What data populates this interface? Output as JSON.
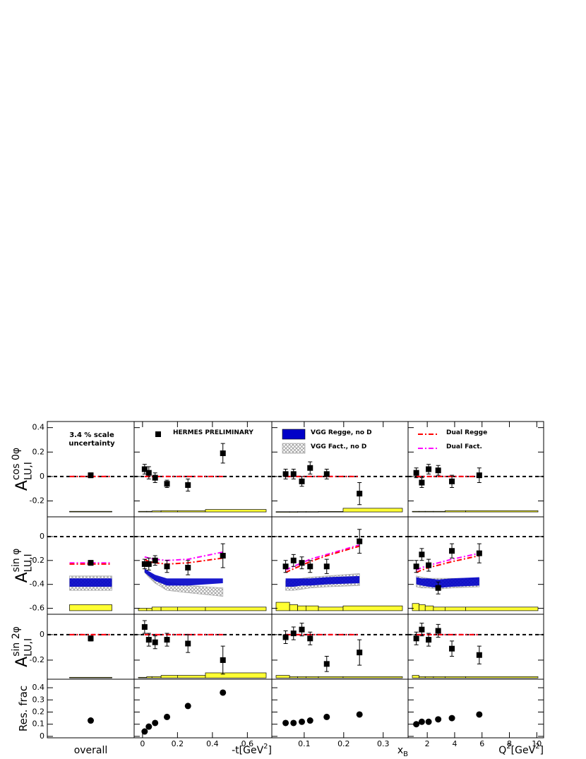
{
  "chart_data": {
    "type": "scatter",
    "annotation": [
      "3.4 % scale",
      "uncertainty"
    ],
    "legend": {
      "data": "HERMES PRELIMINARY",
      "vgg_regge": "VGG Regge, no D",
      "vgg_fact": "VGG Fact., no D",
      "dual_regge": "Dual Regge",
      "dual_fact": "Dual Fact."
    },
    "colors": {
      "data": "#000000",
      "vgg_regge": "#0000c8",
      "vgg_fact": "#a8a8a8",
      "dual_regge": "#ff0000",
      "dual_fact": "#ff00ff",
      "syst": "#ffff33"
    },
    "columns": [
      {
        "xlabel": [
          {
            "text": "overall"
          }
        ]
      },
      {
        "xlabel": [
          {
            "text": "-t[GeV"
          },
          {
            "text": "2",
            "pos": "sup"
          },
          {
            "text": "]"
          }
        ],
        "xlim": [
          -0.048,
          0.74
        ],
        "xticks": [
          0,
          0.2,
          0.4,
          0.6
        ],
        "x": [
          0.012,
          0.036,
          0.072,
          0.14,
          0.26,
          0.46
        ]
      },
      {
        "xlabel": [
          {
            "text": "x"
          },
          {
            "text": "B",
            "pos": "sub"
          }
        ],
        "xlim": [
          0.018,
          0.363
        ],
        "xticks": [
          0.1,
          0.2,
          0.3
        ],
        "x": [
          0.053,
          0.073,
          0.094,
          0.115,
          0.157,
          0.24
        ]
      },
      {
        "xlabel": [
          {
            "text": "Q"
          },
          {
            "text": "2",
            "pos": "sup"
          },
          {
            "text": "[GeV"
          },
          {
            "text": "2",
            "pos": "sup"
          },
          {
            "text": "]"
          }
        ],
        "xlim": [
          0.6,
          10.5
        ],
        "xticks": [
          2,
          4,
          6,
          8,
          10
        ],
        "x": [
          1.2,
          1.6,
          2.1,
          2.8,
          3.8,
          5.8
        ]
      }
    ],
    "rows": [
      {
        "ylabel": [
          {
            "text": "A"
          },
          {
            "text": "cos 0φ",
            "pos": "sup"
          },
          {
            "text": "LU,I",
            "pos": "sub"
          }
        ],
        "ylim": [
          -0.33,
          0.45
        ],
        "yticks": [
          -0.2,
          0,
          0.2,
          0.4
        ],
        "reference_line": 0,
        "syst_base": -0.29,
        "panels": [
          {
            "values": [
              0.01
            ],
            "errors": [
              0.02
            ],
            "dual_regge": [
              0
            ],
            "dual_fact": [
              0
            ],
            "syst": [
              0.005
            ]
          },
          {
            "values": [
              0.06,
              0.03,
              -0.01,
              -0.06,
              -0.07,
              0.19
            ],
            "errors": [
              0.04,
              0.05,
              0.04,
              0.03,
              0.05,
              0.08
            ],
            "dual_regge": [
              0,
              0,
              0,
              0,
              0,
              0
            ],
            "dual_fact": [
              0,
              0,
              0,
              0,
              0,
              0
            ],
            "syst": [
              0.005,
              0.005,
              0.008,
              0.01,
              0.01,
              0.02
            ]
          },
          {
            "values": [
              0.02,
              0.02,
              -0.04,
              0.07,
              0.02,
              -0.14
            ],
            "errors": [
              0.04,
              0.04,
              0.04,
              0.05,
              0.04,
              0.09
            ],
            "dual_regge": [
              0,
              0,
              0,
              0,
              0,
              0
            ],
            "dual_fact": [
              0,
              0,
              0,
              0,
              0,
              0
            ],
            "syst": [
              0.002,
              0.002,
              0.003,
              0.003,
              0.004,
              0.03
            ]
          },
          {
            "values": [
              0.03,
              -0.05,
              0.06,
              0.05,
              -0.04,
              0.01
            ],
            "errors": [
              0.04,
              0.04,
              0.04,
              0.04,
              0.05,
              0.06
            ],
            "dual_regge": [
              0,
              0,
              0,
              0,
              0,
              0
            ],
            "dual_fact": [
              0,
              0,
              0,
              0,
              0,
              0
            ],
            "syst": [
              0.005,
              0.005,
              0.005,
              0.005,
              0.01,
              0.01
            ]
          }
        ]
      },
      {
        "ylabel": [
          {
            "text": "A"
          },
          {
            "text": "sin φ",
            "pos": "sup"
          },
          {
            "text": "LU,I",
            "pos": "sub"
          }
        ],
        "ylim": [
          -0.65,
          0.165
        ],
        "yticks": [
          -0.6,
          -0.4,
          -0.2,
          0
        ],
        "reference_line": 0,
        "syst_base": -0.62,
        "panels": [
          {
            "values": [
              -0.22
            ],
            "errors": [
              0.02
            ],
            "dual_regge": [
              -0.23
            ],
            "dual_fact": [
              -0.22
            ],
            "vgg_regge": {
              "low": [
                -0.42
              ],
              "high": [
                -0.35
              ]
            },
            "vgg_fact": {
              "low": [
                -0.45
              ],
              "high": [
                -0.33
              ]
            },
            "syst": [
              0.05
            ]
          },
          {
            "values": [
              -0.23,
              -0.23,
              -0.2,
              -0.25,
              -0.26,
              -0.16
            ],
            "errors": [
              0.04,
              0.05,
              0.04,
              0.05,
              0.06,
              0.1
            ],
            "dual_regge": [
              -0.19,
              -0.21,
              -0.22,
              -0.23,
              -0.22,
              -0.18
            ],
            "dual_fact": [
              -0.17,
              -0.18,
              -0.19,
              -0.2,
              -0.19,
              -0.13
            ],
            "vgg_regge": {
              "low": [
                -0.3,
                -0.33,
                -0.37,
                -0.41,
                -0.41,
                -0.39
              ],
              "high": [
                -0.27,
                -0.29,
                -0.32,
                -0.35,
                -0.35,
                -0.35
              ]
            },
            "vgg_fact": {
              "low": [
                -0.3,
                -0.34,
                -0.39,
                -0.45,
                -0.47,
                -0.5
              ],
              "high": [
                -0.27,
                -0.3,
                -0.34,
                -0.38,
                -0.41,
                -0.43
              ]
            },
            "syst": [
              0.02,
              0.02,
              0.03,
              0.03,
              0.03,
              0.03
            ]
          },
          {
            "values": [
              -0.25,
              -0.2,
              -0.22,
              -0.25,
              -0.25,
              -0.04
            ],
            "errors": [
              0.05,
              0.05,
              0.05,
              0.05,
              0.06,
              0.1
            ],
            "dual_regge": [
              -0.3,
              -0.27,
              -0.24,
              -0.21,
              -0.16,
              -0.08
            ],
            "dual_fact": [
              -0.28,
              -0.25,
              -0.22,
              -0.19,
              -0.15,
              -0.07
            ],
            "vgg_regge": {
              "low": [
                -0.42,
                -0.42,
                -0.41,
                -0.41,
                -0.4,
                -0.39
              ],
              "high": [
                -0.35,
                -0.35,
                -0.35,
                -0.35,
                -0.34,
                -0.33
              ]
            },
            "vgg_fact": {
              "low": [
                -0.45,
                -0.45,
                -0.44,
                -0.43,
                -0.42,
                -0.41
              ],
              "high": [
                -0.37,
                -0.36,
                -0.35,
                -0.34,
                -0.33,
                -0.31
              ]
            },
            "syst": [
              0.07,
              0.05,
              0.04,
              0.04,
              0.03,
              0.04
            ]
          },
          {
            "values": [
              -0.25,
              -0.15,
              -0.24,
              -0.43,
              -0.12,
              -0.14
            ],
            "errors": [
              0.05,
              0.05,
              0.05,
              0.05,
              0.06,
              0.08
            ],
            "dual_regge": [
              -0.3,
              -0.28,
              -0.26,
              -0.24,
              -0.21,
              -0.16
            ],
            "dual_fact": [
              -0.28,
              -0.26,
              -0.24,
              -0.22,
              -0.19,
              -0.14
            ],
            "vgg_regge": {
              "low": [
                -0.4,
                -0.41,
                -0.42,
                -0.43,
                -0.42,
                -0.41
              ],
              "high": [
                -0.34,
                -0.35,
                -0.35,
                -0.36,
                -0.35,
                -0.34
              ]
            },
            "vgg_fact": {
              "low": [
                -0.42,
                -0.43,
                -0.43,
                -0.44,
                -0.43,
                -0.42
              ],
              "high": [
                -0.33,
                -0.34,
                -0.35,
                -0.35,
                -0.35,
                -0.35
              ]
            },
            "syst": [
              0.06,
              0.05,
              0.04,
              0.03,
              0.03,
              0.03
            ]
          }
        ]
      },
      {
        "ylabel": [
          {
            "text": "A"
          },
          {
            "text": "sin 2φ",
            "pos": "sup"
          },
          {
            "text": "LU,I",
            "pos": "sub"
          }
        ],
        "ylim": [
          -0.35,
          0.16
        ],
        "yticks": [
          -0.2,
          0
        ],
        "reference_line": 0,
        "syst_base": -0.34,
        "panels": [
          {
            "values": [
              -0.03
            ],
            "errors": [
              0.02
            ],
            "dual_regge": [
              0
            ],
            "dual_fact": [
              0
            ],
            "syst": [
              0.005
            ]
          },
          {
            "values": [
              0.06,
              -0.04,
              -0.06,
              -0.04,
              -0.07,
              -0.2
            ],
            "errors": [
              0.05,
              0.05,
              0.05,
              0.05,
              0.07,
              0.11
            ],
            "dual_regge": [
              0,
              0,
              0,
              0,
              0,
              0
            ],
            "dual_fact": [
              0,
              0,
              0,
              0,
              0,
              0
            ],
            "syst": [
              0.005,
              0.01,
              0.01,
              0.02,
              0.02,
              0.04
            ]
          },
          {
            "values": [
              -0.02,
              0.01,
              0.04,
              -0.03,
              -0.23,
              -0.14
            ],
            "errors": [
              0.05,
              0.05,
              0.05,
              0.05,
              0.06,
              0.1
            ],
            "dual_regge": [
              0,
              0,
              0,
              0,
              0,
              0
            ],
            "dual_fact": [
              0,
              0,
              0,
              0,
              0,
              0
            ],
            "syst": [
              0.02,
              0.01,
              0.01,
              0.01,
              0.01,
              0.01
            ]
          },
          {
            "values": [
              -0.03,
              0.04,
              -0.04,
              0.03,
              -0.11,
              -0.16
            ],
            "errors": [
              0.05,
              0.05,
              0.05,
              0.05,
              0.06,
              0.07
            ],
            "dual_regge": [
              0,
              0,
              0,
              0,
              0,
              0
            ],
            "dual_fact": [
              0,
              0,
              0,
              0,
              0,
              0
            ],
            "syst": [
              0.02,
              0.01,
              0.01,
              0.01,
              0.01,
              0.01
            ]
          }
        ]
      },
      {
        "ylabel": [
          {
            "text": "Res. frac"
          }
        ],
        "ylim": [
          -0.012,
          0.47
        ],
        "yticks": [
          0,
          0.1,
          0.2,
          0.3,
          0.4
        ],
        "panels": [
          {
            "values": [
              0.13
            ]
          },
          {
            "values": [
              0.04,
              0.08,
              0.11,
              0.16,
              0.25,
              0.36
            ]
          },
          {
            "values": [
              0.11,
              0.11,
              0.12,
              0.13,
              0.16,
              0.18
            ]
          },
          {
            "values": [
              0.1,
              0.12,
              0.12,
              0.14,
              0.15,
              0.18
            ]
          }
        ]
      }
    ]
  }
}
